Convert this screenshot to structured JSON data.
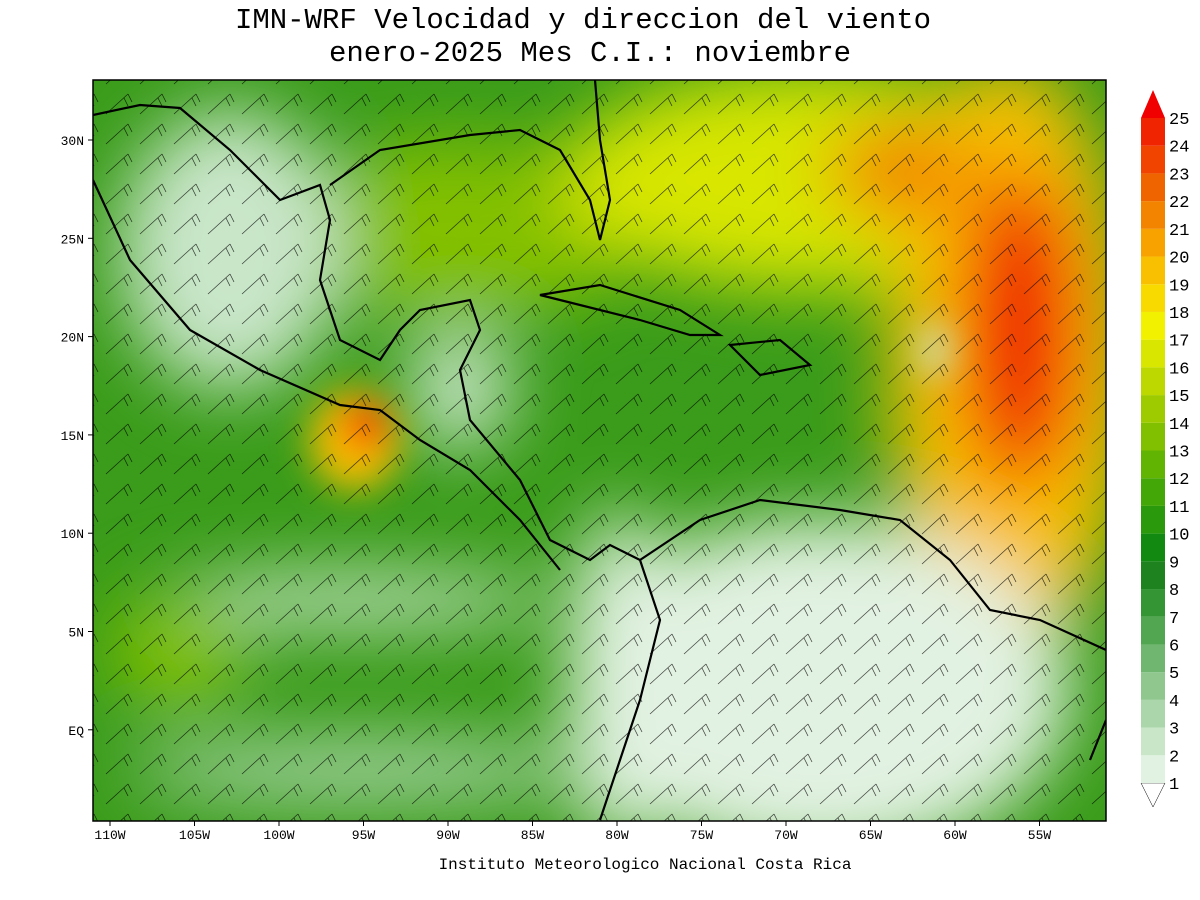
{
  "title": [
    "IMN-WRF Velocidad y direccion del viento",
    "enero-2025 Mes C.I.: noviembre"
  ],
  "lat_labels": [
    "30N",
    "25N",
    "20N",
    "15N",
    "10N",
    "5N",
    "EQ"
  ],
  "lon_labels": [
    "110W",
    "105W",
    "100W",
    "95W",
    "90W",
    "85W",
    "80W",
    "75W",
    "70W",
    "65W",
    "60W",
    "55W"
  ],
  "colorbar": {
    "levels": [
      1,
      2,
      3,
      4,
      5,
      6,
      7,
      8,
      9,
      10,
      11,
      12,
      13,
      14,
      15,
      16,
      17,
      18,
      19,
      20,
      21,
      22,
      23,
      24,
      25
    ],
    "colors": [
      "#ffffff",
      "#e2f2e2",
      "#c9e6c9",
      "#abd6ab",
      "#8fc78f",
      "#70b670",
      "#52a652",
      "#339533",
      "#1e831e",
      "#128a12",
      "#2a990c",
      "#44a708",
      "#62b402",
      "#80c000",
      "#9ecb00",
      "#bcd800",
      "#d8e600",
      "#f2f200",
      "#f8da00",
      "#f8c000",
      "#f8a200",
      "#f28400",
      "#f06400",
      "#f04400",
      "#f02400",
      "#f00000"
    ]
  },
  "footer": "Instituto Meteorologico Nacional Costa Rica"
}
